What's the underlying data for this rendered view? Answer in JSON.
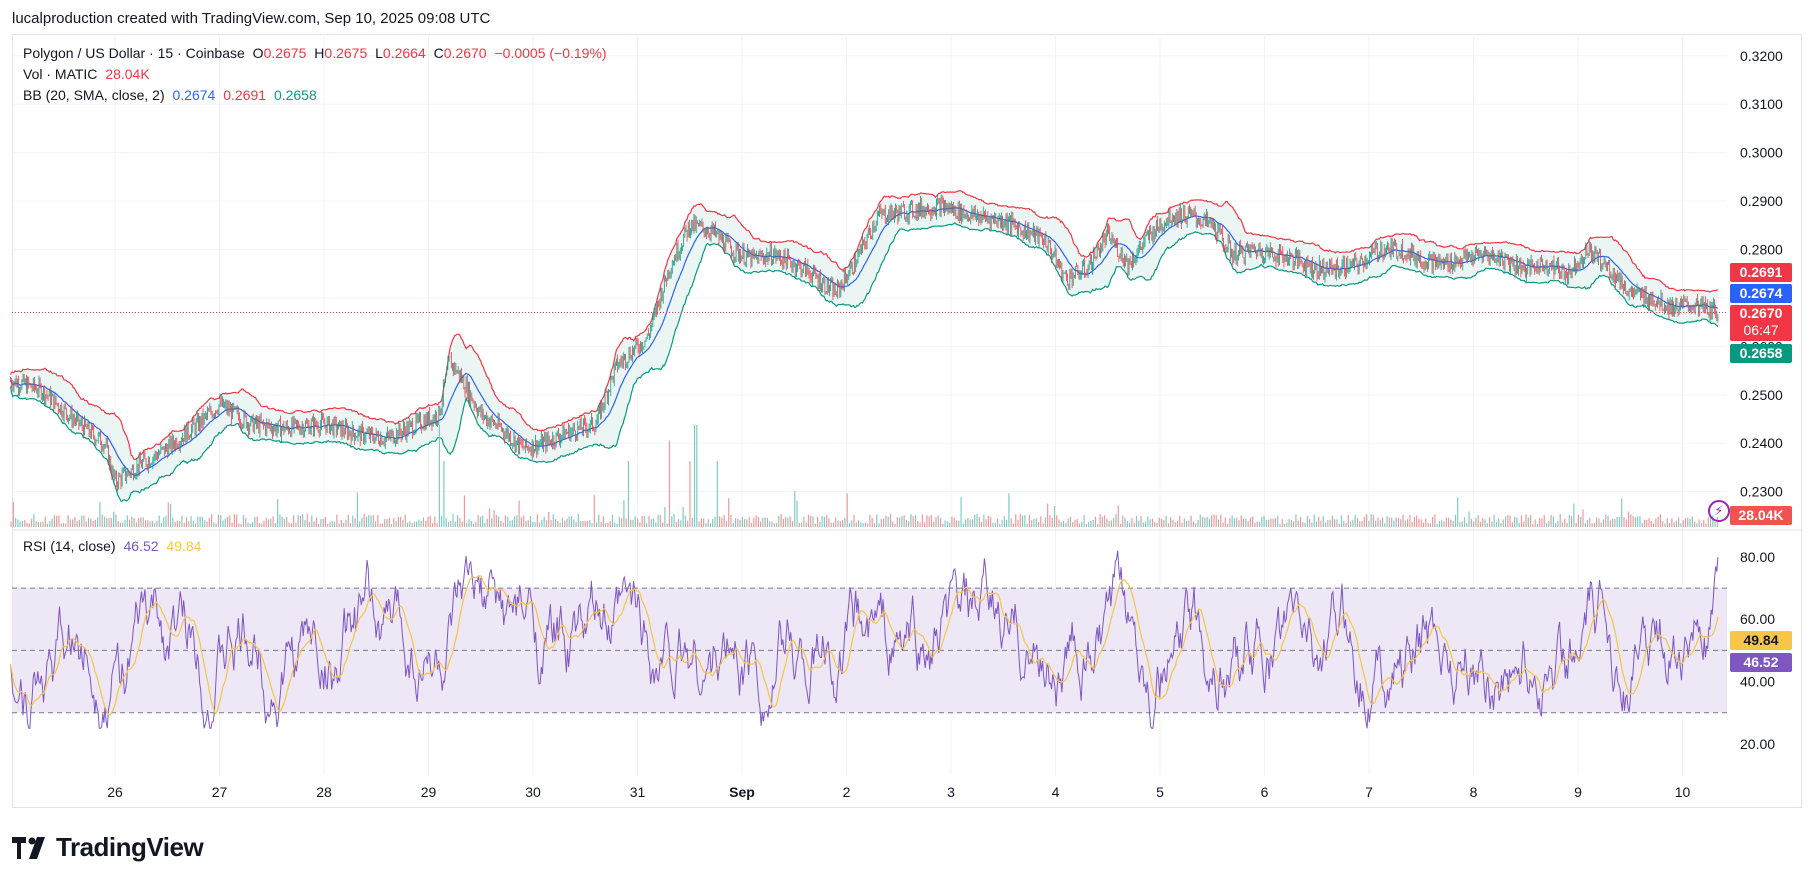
{
  "caption": "lucalproduction created with TradingView.com, Sep 10, 2025 09:08 UTC",
  "legend": {
    "symbol": "Polygon / US Dollar · 15 · Coinbase",
    "o_label": "O",
    "o_val": "0.2675",
    "h_label": "H",
    "h_val": "0.2675",
    "l_label": "L",
    "l_val": "0.2664",
    "c_label": "C",
    "c_val": "0.2670",
    "change": "−0.0005 (−0.19%)",
    "vol_label": "Vol · MATIC",
    "vol_val": "28.04K",
    "bb_label": "BB (20, SMA, close, 2)",
    "bb_mid": "0.2674",
    "bb_upper": "0.2691",
    "bb_lower": "0.2658",
    "rsi_label": "RSI (14, close)",
    "rsi_val": "46.52",
    "rsi_ma": "49.84"
  },
  "price_tags": {
    "upper": "0.2691",
    "mid": "0.2674",
    "last": "0.2670",
    "countdown": "06:47",
    "lower": "0.2658",
    "volume": "28.04K",
    "rsi_ma": "49.84",
    "rsi": "46.52"
  },
  "brand": "TradingView",
  "colors": {
    "up": "#089981",
    "down": "#f23645",
    "bb_upper": "#f23645",
    "bb_mid": "#2962ff",
    "bb_lower": "#089981",
    "bb_fill": "#e6f4f1",
    "rsi": "#7e57c2",
    "rsi_ma": "#f7c548",
    "rsi_band": "#ede7f6"
  },
  "chart_data": {
    "type": "candlestick",
    "price_axis": {
      "ticks": [
        "0.3200",
        "0.3100",
        "0.3000",
        "0.2900",
        "0.2800",
        "0.2700",
        "0.2600",
        "0.2500",
        "0.2400",
        "0.2300"
      ],
      "ylim": [
        0.2225,
        0.3245
      ]
    },
    "rsi_axis": {
      "ticks": [
        "80.00",
        "60.00",
        "40.00",
        "20.00"
      ],
      "ylim": [
        10,
        88
      ],
      "bands": [
        70,
        50,
        30
      ]
    },
    "x_ticks": [
      "26",
      "27",
      "28",
      "29",
      "30",
      "31",
      "Sep",
      "2",
      "3",
      "4",
      "5",
      "6",
      "7",
      "8",
      "9",
      "10"
    ],
    "time_range_days": [
      25.0,
      10.35
    ],
    "close_path": [
      [
        0,
        0.253
      ],
      [
        0.3,
        0.251
      ],
      [
        0.6,
        0.245
      ],
      [
        0.9,
        0.24
      ],
      [
        1.0,
        0.232
      ],
      [
        1.2,
        0.235
      ],
      [
        1.5,
        0.239
      ],
      [
        1.8,
        0.244
      ],
      [
        2.0,
        0.248
      ],
      [
        2.3,
        0.244
      ],
      [
        2.6,
        0.243
      ],
      [
        3.0,
        0.244
      ],
      [
        3.3,
        0.242
      ],
      [
        3.6,
        0.241
      ],
      [
        3.9,
        0.244
      ],
      [
        4.1,
        0.246
      ],
      [
        4.2,
        0.257
      ],
      [
        4.3,
        0.254
      ],
      [
        4.5,
        0.246
      ],
      [
        4.7,
        0.243
      ],
      [
        4.9,
        0.239
      ],
      [
        5.1,
        0.24
      ],
      [
        5.3,
        0.242
      ],
      [
        5.6,
        0.244
      ],
      [
        5.8,
        0.256
      ],
      [
        6.1,
        0.262
      ],
      [
        6.3,
        0.276
      ],
      [
        6.5,
        0.285
      ],
      [
        6.7,
        0.284
      ],
      [
        6.9,
        0.28
      ],
      [
        7.1,
        0.278
      ],
      [
        7.3,
        0.279
      ],
      [
        7.6,
        0.276
      ],
      [
        7.9,
        0.271
      ],
      [
        8.1,
        0.278
      ],
      [
        8.3,
        0.287
      ],
      [
        8.6,
        0.288
      ],
      [
        8.9,
        0.289
      ],
      [
        9.2,
        0.287
      ],
      [
        9.5,
        0.286
      ],
      [
        9.7,
        0.284
      ],
      [
        9.9,
        0.282
      ],
      [
        10.1,
        0.274
      ],
      [
        10.3,
        0.276
      ],
      [
        10.5,
        0.283
      ],
      [
        10.7,
        0.277
      ],
      [
        10.9,
        0.283
      ],
      [
        11.1,
        0.287
      ],
      [
        11.3,
        0.287
      ],
      [
        11.5,
        0.285
      ],
      [
        11.7,
        0.279
      ],
      [
        11.9,
        0.28
      ],
      [
        12.1,
        0.279
      ],
      [
        12.3,
        0.278
      ],
      [
        12.5,
        0.276
      ],
      [
        12.7,
        0.276
      ],
      [
        12.9,
        0.277
      ],
      [
        13.1,
        0.28
      ],
      [
        13.3,
        0.28
      ],
      [
        13.5,
        0.278
      ],
      [
        13.7,
        0.277
      ],
      [
        13.9,
        0.278
      ],
      [
        14.1,
        0.279
      ],
      [
        14.3,
        0.278
      ],
      [
        14.5,
        0.276
      ],
      [
        14.7,
        0.277
      ],
      [
        14.9,
        0.275
      ],
      [
        15.1,
        0.28
      ],
      [
        15.3,
        0.276
      ],
      [
        15.5,
        0.271
      ],
      [
        15.7,
        0.27
      ],
      [
        15.9,
        0.268
      ],
      [
        16.1,
        0.2685
      ],
      [
        16.35,
        0.267
      ]
    ],
    "bb_offset": 0.0025,
    "volume_spikes": [
      [
        4.1,
        0.85
      ],
      [
        4.15,
        0.55
      ],
      [
        5.9,
        0.55
      ],
      [
        6.3,
        0.72
      ],
      [
        6.5,
        0.55
      ],
      [
        6.55,
        0.85
      ],
      [
        6.75,
        0.55
      ],
      [
        7.5,
        0.3
      ],
      [
        8.0,
        0.28
      ],
      [
        9.1,
        0.25
      ]
    ],
    "rsi_range": [
      25,
      82
    ]
  }
}
